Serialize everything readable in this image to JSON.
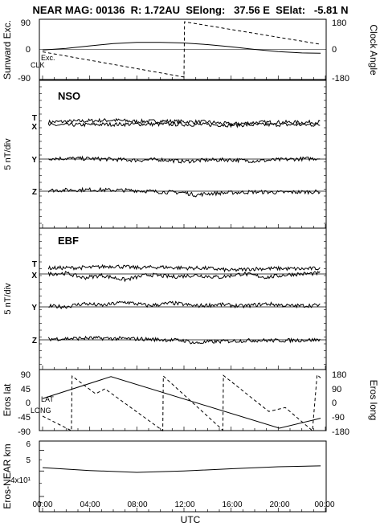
{
  "header": {
    "title": "NEAR MAG: 00136  R: 1.72AU  SElong:   37.56 E  SElat:   -5.81 N"
  },
  "xaxis": {
    "ticks": [
      "00:00",
      "04:00",
      "08:00",
      "12:00",
      "16:00",
      "20:00",
      "00:00"
    ],
    "label": "UTC"
  },
  "chart_data": [
    {
      "type": "line",
      "panel": "angles",
      "ylabel_left": "Sunward Exc.",
      "ylabel_right": "Clock Angle",
      "left_ticks": [
        "90",
        "0",
        "-90"
      ],
      "right_ticks": [
        "180",
        "0",
        "-180"
      ],
      "ylim_left": [
        -90,
        90
      ],
      "ylim_right": [
        -180,
        180
      ],
      "series_labels": [
        "Exc.",
        "CLK"
      ],
      "x_hours": [
        0,
        2,
        4,
        6,
        8,
        10,
        12,
        12.01,
        14,
        16,
        18,
        20,
        22,
        24
      ],
      "series": [
        {
          "name": "Exc.",
          "x": [
            0,
            2,
            4,
            6,
            8,
            10,
            12,
            14,
            16,
            18,
            20,
            22,
            23.6
          ],
          "values": [
            -2,
            3,
            11,
            18,
            22,
            22,
            20,
            15,
            8,
            0,
            -7,
            -11,
            -12
          ]
        },
        {
          "name": "CLK",
          "x": [
            0,
            12,
            12.05,
            23.6
          ],
          "values": [
            -15,
            -172,
            172,
            32
          ]
        }
      ]
    },
    {
      "type": "line",
      "panel": "NSO",
      "panel_label": "NSO",
      "ylabel": "5 nT/div",
      "series_labels": [
        "T",
        "X",
        "Y",
        "Z"
      ],
      "series": [
        {
          "name": "T",
          "x": [
            0,
            4,
            6,
            8,
            10,
            12,
            14,
            16,
            18,
            20,
            22,
            23.6
          ],
          "values": [
            0.6,
            1.2,
            1.5,
            0.9,
            1.1,
            0.8,
            0.7,
            -0.2,
            0.5,
            0.6,
            0.5,
            0.7
          ]
        },
        {
          "name": "X",
          "x": [
            0,
            4,
            8,
            12,
            16,
            20,
            23.6
          ],
          "values": [
            0,
            0.3,
            0.5,
            0.4,
            0.1,
            0.3,
            0.2
          ]
        },
        {
          "name": "Y",
          "x": [
            0,
            4,
            8,
            10,
            12,
            14,
            16,
            18,
            20,
            22,
            23.6
          ],
          "values": [
            0.3,
            0.2,
            -0.5,
            -0.2,
            -1.0,
            -0.4,
            -0.3,
            -0.8,
            -0.3,
            0.1,
            0.3
          ]
        },
        {
          "name": "Z",
          "x": [
            0,
            4,
            8,
            10,
            12,
            13,
            14,
            16,
            18,
            20,
            23.6
          ],
          "values": [
            0.3,
            0.6,
            0.3,
            -0.3,
            -0.6,
            -1.6,
            -1.0,
            -0.6,
            -0.3,
            -0.5,
            -0.2
          ]
        }
      ]
    },
    {
      "type": "line",
      "panel": "EBF",
      "panel_label": "EBF",
      "ylabel": "5 nT/div",
      "series_labels": [
        "T",
        "X",
        "Y",
        "Z"
      ],
      "series": [
        {
          "name": "T",
          "x": [
            0,
            4,
            6,
            8,
            10,
            12,
            14,
            16,
            18,
            20,
            22,
            23.6
          ],
          "values": [
            0.7,
            1.0,
            1.6,
            0.9,
            1.2,
            0.8,
            0.7,
            -0.2,
            0.5,
            0.6,
            0.4,
            0.7
          ]
        },
        {
          "name": "X",
          "x": [
            0,
            2,
            3.5,
            5,
            7,
            9,
            11,
            13,
            15,
            17,
            19,
            21,
            23.6
          ],
          "values": [
            0,
            0.3,
            -1.6,
            -0.6,
            -2.4,
            -0.3,
            -1.2,
            -0.5,
            -1.4,
            0.1,
            -1.4,
            -0.2,
            0.3
          ]
        },
        {
          "name": "Y",
          "x": [
            0,
            2,
            3.5,
            5,
            7,
            9,
            11,
            13,
            15,
            17,
            19,
            21,
            23.6
          ],
          "values": [
            0.3,
            0.1,
            1.4,
            0.6,
            2.0,
            0.5,
            1.6,
            0.4,
            1.0,
            0.3,
            1.3,
            0.4,
            0.7
          ]
        },
        {
          "name": "Z",
          "x": [
            0,
            4,
            8,
            10,
            12,
            13,
            14,
            16,
            18,
            20,
            23.6
          ],
          "values": [
            0.3,
            0.7,
            0.4,
            0.1,
            -0.3,
            -1.4,
            -0.9,
            -0.5,
            -0.2,
            -0.3,
            0.0
          ]
        }
      ]
    },
    {
      "type": "line",
      "panel": "eros-position",
      "ylabel_left": "Eros lat",
      "ylabel_right": "Eros long",
      "left_ticks": [
        "90",
        "45",
        "0",
        "-45",
        "-90"
      ],
      "right_ticks": [
        "180",
        "90",
        "0",
        "-90",
        "-180"
      ],
      "ylim_left": [
        -90,
        90
      ],
      "ylim_right": [
        -180,
        180
      ],
      "series_labels": [
        "LAT",
        "LONG"
      ],
      "series": [
        {
          "name": "LAT",
          "x": [
            0,
            5.8,
            20.1,
            23.6
          ],
          "values": [
            14,
            84,
            -81,
            -49
          ]
        },
        {
          "name": "LONG",
          "x": [
            0,
            2.45,
            2.5,
            4.5,
            5.3,
            10.2,
            10.25,
            15.3,
            15.35,
            19.2,
            20.6,
            22.9,
            23.3,
            23.6
          ],
          "values": [
            -85,
            -178,
            172,
            58,
            90,
            -178,
            172,
            -175,
            176,
            -55,
            -30,
            -178,
            180,
            160
          ]
        }
      ]
    },
    {
      "type": "line",
      "panel": "distance",
      "ylabel": "Eros-NEAR km",
      "y_scale": "log",
      "ylim": [
        35,
        65
      ],
      "tick_labels": [
        "6",
        "5",
        "4x10¹"
      ],
      "series": [
        {
          "name": "",
          "x": [
            0,
            4,
            8,
            12,
            16,
            20,
            23.6
          ],
          "values": [
            51.5,
            50.2,
            49.4,
            50.0,
            51.0,
            51.9,
            52.3
          ]
        }
      ]
    }
  ]
}
